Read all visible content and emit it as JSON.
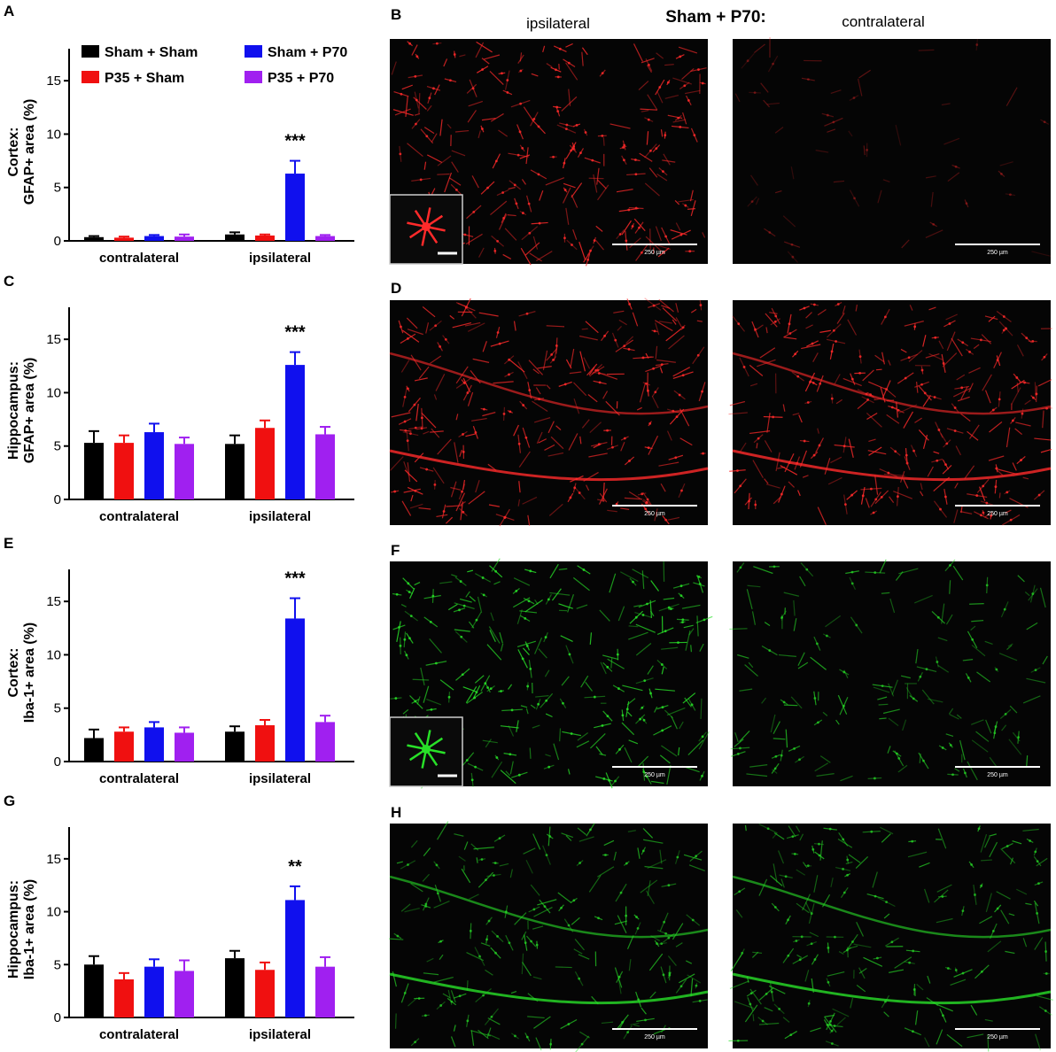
{
  "figure_heading": "Sham + P70:",
  "column_labels": [
    "ipsilateral",
    "contralateral"
  ],
  "legend": [
    {
      "name": "Sham + Sham",
      "color": "#000000"
    },
    {
      "name": "Sham + P70",
      "color": "#1010ee"
    },
    {
      "name": "P35 + Sham",
      "color": "#f01010"
    },
    {
      "name": "P35 + P70",
      "color": "#a020f0"
    }
  ],
  "chart_data": [
    {
      "panel": "A",
      "type": "bar",
      "ylabel_lines": [
        "Cortex:",
        "GFAP+ area (%)"
      ],
      "categories": [
        "contralateral",
        "ipsilateral"
      ],
      "ylim": [
        0,
        18
      ],
      "yticks": [
        0,
        5,
        10,
        15
      ],
      "series": [
        {
          "name": "Sham + Sham",
          "color": "#000000",
          "values": [
            0.35,
            0.6
          ],
          "errors": [
            0.1,
            0.2
          ]
        },
        {
          "name": "P35 + Sham",
          "color": "#f01010",
          "values": [
            0.3,
            0.5
          ],
          "errors": [
            0.1,
            0.1
          ]
        },
        {
          "name": "Sham + P70",
          "color": "#1010ee",
          "values": [
            0.45,
            6.3
          ],
          "errors": [
            0.1,
            1.2
          ]
        },
        {
          "name": "P35 + P70",
          "color": "#a020f0",
          "values": [
            0.4,
            0.45
          ],
          "errors": [
            0.2,
            0.1
          ]
        }
      ],
      "annotations": [
        {
          "category": 1,
          "series": 2,
          "text": "***"
        }
      ]
    },
    {
      "panel": "C",
      "type": "bar",
      "ylabel_lines": [
        "Hippocampus:",
        "GFAP+ area (%)"
      ],
      "categories": [
        "contralateral",
        "ipsilateral"
      ],
      "ylim": [
        0,
        18
      ],
      "yticks": [
        0,
        5,
        10,
        15
      ],
      "series": [
        {
          "name": "Sham + Sham",
          "color": "#000000",
          "values": [
            5.3,
            5.2
          ],
          "errors": [
            1.1,
            0.8
          ]
        },
        {
          "name": "P35 + Sham",
          "color": "#f01010",
          "values": [
            5.3,
            6.7
          ],
          "errors": [
            0.7,
            0.7
          ]
        },
        {
          "name": "Sham + P70",
          "color": "#1010ee",
          "values": [
            6.3,
            12.6
          ],
          "errors": [
            0.8,
            1.2
          ]
        },
        {
          "name": "P35 + P70",
          "color": "#a020f0",
          "values": [
            5.2,
            6.1
          ],
          "errors": [
            0.6,
            0.7
          ]
        }
      ],
      "annotations": [
        {
          "category": 1,
          "series": 2,
          "text": "***"
        }
      ]
    },
    {
      "panel": "E",
      "type": "bar",
      "ylabel_lines": [
        "Cortex:",
        "Iba-1+ area (%)"
      ],
      "categories": [
        "contralateral",
        "ipsilateral"
      ],
      "ylim": [
        0,
        18
      ],
      "yticks": [
        0,
        5,
        10,
        15
      ],
      "series": [
        {
          "name": "Sham + Sham",
          "color": "#000000",
          "values": [
            2.2,
            2.8
          ],
          "errors": [
            0.8,
            0.5
          ]
        },
        {
          "name": "P35 + Sham",
          "color": "#f01010",
          "values": [
            2.8,
            3.4
          ],
          "errors": [
            0.4,
            0.5
          ]
        },
        {
          "name": "Sham + P70",
          "color": "#1010ee",
          "values": [
            3.2,
            13.4
          ],
          "errors": [
            0.5,
            1.9
          ]
        },
        {
          "name": "P35 + P70",
          "color": "#a020f0",
          "values": [
            2.7,
            3.7
          ],
          "errors": [
            0.5,
            0.6
          ]
        }
      ],
      "annotations": [
        {
          "category": 1,
          "series": 2,
          "text": "***"
        }
      ]
    },
    {
      "panel": "G",
      "type": "bar",
      "ylabel_lines": [
        "Hippocampus:",
        "Iba-1+ area (%)"
      ],
      "categories": [
        "contralateral",
        "ipsilateral"
      ],
      "ylim": [
        0,
        18
      ],
      "yticks": [
        0,
        5,
        10,
        15
      ],
      "series": [
        {
          "name": "Sham + Sham",
          "color": "#000000",
          "values": [
            5.0,
            5.6
          ],
          "errors": [
            0.8,
            0.7
          ]
        },
        {
          "name": "P35 + Sham",
          "color": "#f01010",
          "values": [
            3.6,
            4.5
          ],
          "errors": [
            0.6,
            0.7
          ]
        },
        {
          "name": "Sham + P70",
          "color": "#1010ee",
          "values": [
            4.8,
            11.1
          ],
          "errors": [
            0.7,
            1.3
          ]
        },
        {
          "name": "P35 + P70",
          "color": "#a020f0",
          "values": [
            4.4,
            4.8
          ],
          "errors": [
            1.0,
            0.9
          ]
        }
      ],
      "annotations": [
        {
          "category": 1,
          "series": 2,
          "text": "**"
        }
      ]
    }
  ],
  "micrographs": [
    {
      "panel": "B",
      "stain": "GFAP",
      "color": "#ff2a2a",
      "images": [
        {
          "view": "ipsilateral",
          "scale_label": "250 µm",
          "inset": true
        },
        {
          "view": "contralateral",
          "scale_label": "250 µm",
          "inset": false
        }
      ]
    },
    {
      "panel": "D",
      "stain": "GFAP",
      "color": "#ff2a2a",
      "images": [
        {
          "view": "ipsilateral",
          "scale_label": "250 µm",
          "inset": false
        },
        {
          "view": "contralateral",
          "scale_label": "250 µm",
          "inset": false
        }
      ]
    },
    {
      "panel": "F",
      "stain": "Iba-1",
      "color": "#28e028",
      "images": [
        {
          "view": "ipsilateral",
          "scale_label": "250 µm",
          "inset": true
        },
        {
          "view": "contralateral",
          "scale_label": "250 µm",
          "inset": false
        }
      ]
    },
    {
      "panel": "H",
      "stain": "Iba-1",
      "color": "#28e028",
      "images": [
        {
          "view": "ipsilateral",
          "scale_label": "250 µm",
          "inset": false
        },
        {
          "view": "contralateral",
          "scale_label": "250 µm",
          "inset": false
        }
      ]
    }
  ]
}
